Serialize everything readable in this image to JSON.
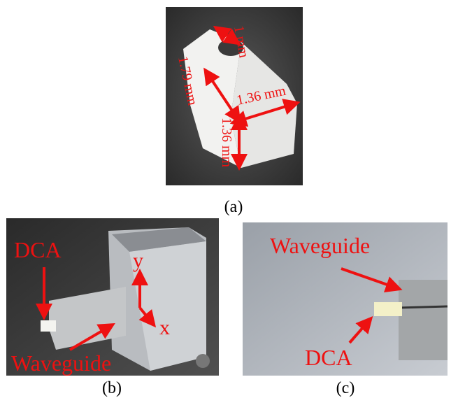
{
  "panels": [
    {
      "caption": "(a)",
      "labels": [
        "1 mm",
        "1.79 mm",
        "1.36 mm",
        "1.36 mm"
      ]
    },
    {
      "caption": "(b)",
      "labels": [
        "DCA",
        "y",
        "x",
        "Waveguide"
      ]
    },
    {
      "caption": "(c)",
      "labels": [
        "Waveguide",
        "DCA"
      ]
    }
  ]
}
